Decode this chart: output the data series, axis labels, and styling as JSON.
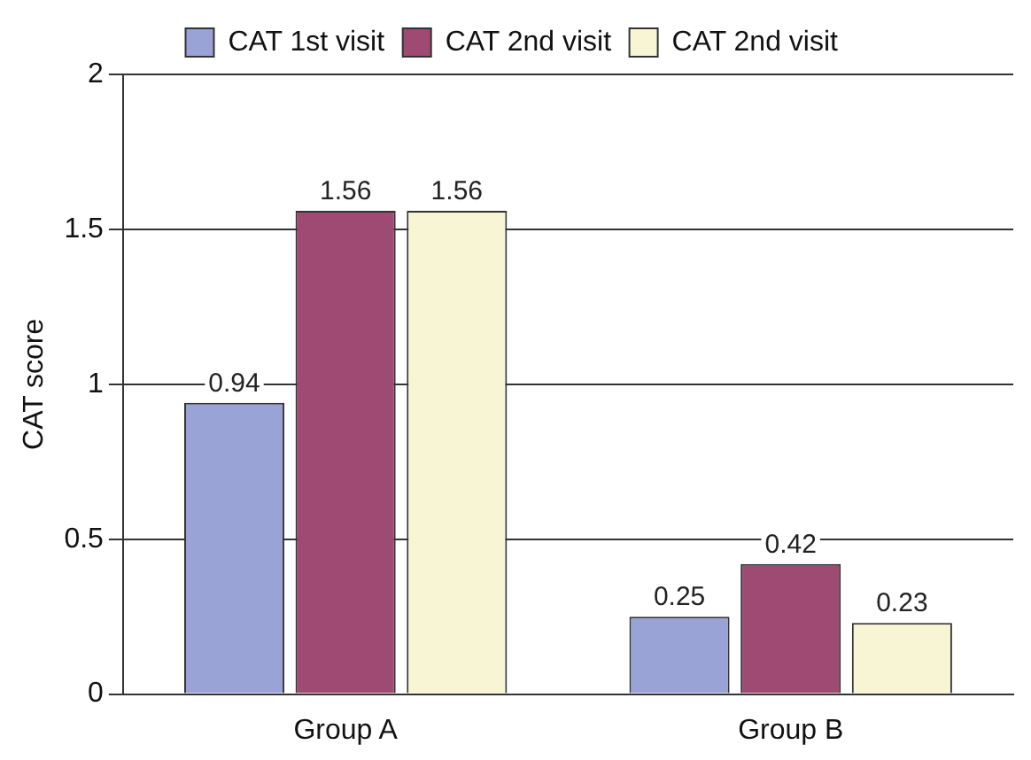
{
  "chart_data": {
    "type": "bar",
    "ylabel": "CAT score",
    "categories": [
      "Group A",
      "Group B"
    ],
    "series": [
      {
        "name": "CAT 1st visit",
        "color": "#99a3d6",
        "values": [
          0.94,
          0.25
        ]
      },
      {
        "name": "CAT 2nd visit",
        "color": "#9e4a72",
        "values": [
          1.56,
          0.42
        ]
      },
      {
        "name": "CAT 2nd visit",
        "color": "#f7f5d4",
        "values": [
          1.56,
          0.23
        ]
      }
    ],
    "ylim": [
      0,
      2
    ],
    "yticks": [
      0,
      0.5,
      1,
      1.5,
      2
    ],
    "grid": "y",
    "legend": "top",
    "data_labels": true
  }
}
